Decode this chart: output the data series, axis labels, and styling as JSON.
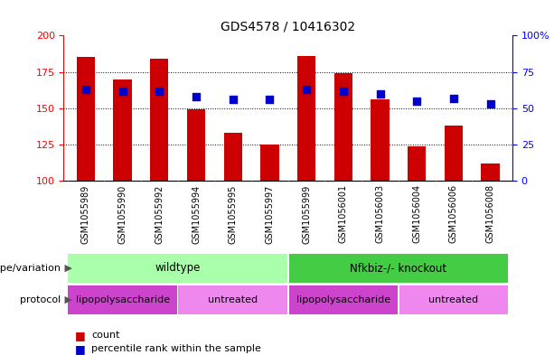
{
  "title": "GDS4578 / 10416302",
  "samples": [
    "GSM1055989",
    "GSM1055990",
    "GSM1055992",
    "GSM1055994",
    "GSM1055995",
    "GSM1055997",
    "GSM1055999",
    "GSM1056001",
    "GSM1056003",
    "GSM1056004",
    "GSM1056006",
    "GSM1056008"
  ],
  "counts": [
    185,
    170,
    184,
    149,
    133,
    125,
    186,
    174,
    156,
    124,
    138,
    112
  ],
  "percentile_ranks": [
    63,
    62,
    62,
    58,
    56,
    56,
    63,
    62,
    60,
    55,
    57,
    53
  ],
  "ylim_left": [
    100,
    200
  ],
  "ylim_right": [
    0,
    100
  ],
  "yticks_left": [
    100,
    125,
    150,
    175,
    200
  ],
  "yticks_right": [
    0,
    25,
    50,
    75,
    100
  ],
  "ytick_labels_right": [
    "0",
    "25",
    "50",
    "75",
    "100%"
  ],
  "bar_color": "#cc0000",
  "dot_color": "#0000cc",
  "bar_width": 0.5,
  "dot_size": 30,
  "bg_color": "#ffffff",
  "genotype_groups": [
    {
      "text": "wildtype",
      "start": 0,
      "end": 5,
      "color": "#aaffaa"
    },
    {
      "text": "Nfkbiz-/- knockout",
      "start": 6,
      "end": 11,
      "color": "#44cc44"
    }
  ],
  "protocol_groups": [
    {
      "text": "lipopolysaccharide",
      "start": 0,
      "end": 2,
      "color": "#cc44cc"
    },
    {
      "text": "untreated",
      "start": 3,
      "end": 5,
      "color": "#ee88ee"
    },
    {
      "text": "lipopolysaccharide",
      "start": 6,
      "end": 8,
      "color": "#cc44cc"
    },
    {
      "text": "untreated",
      "start": 9,
      "end": 11,
      "color": "#ee88ee"
    }
  ],
  "genotype_label": "genotype/variation",
  "protocol_label": "protocol",
  "legend_count_label": "count",
  "legend_pct_label": "percentile rank within the sample",
  "sample_bg_color": "#cccccc",
  "gridline_vals": [
    125,
    150,
    175
  ]
}
